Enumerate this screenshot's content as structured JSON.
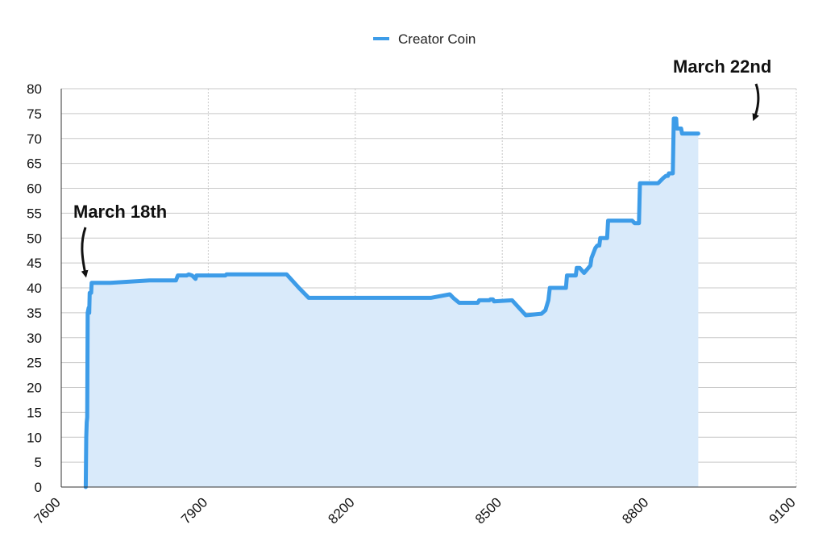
{
  "chart_data": {
    "type": "area",
    "title": "",
    "xlabel": "",
    "ylabel": "",
    "xlim": [
      7600,
      9100
    ],
    "ylim": [
      0,
      80
    ],
    "x_ticks": [
      "7600",
      "7900",
      "8200",
      "8500",
      "8800",
      "9100"
    ],
    "y_ticks": [
      "0",
      "5",
      "10",
      "15",
      "20",
      "25",
      "30",
      "35",
      "40",
      "45",
      "50",
      "55",
      "60",
      "65",
      "70",
      "75",
      "80"
    ],
    "grid": true,
    "legend_position": "top-center",
    "colors": {
      "line": "#3d9ce8",
      "fill": "#d9eafa",
      "grid": "#c8c8c8",
      "axis": "#333333"
    },
    "series": [
      {
        "name": "Creator Coin",
        "points": [
          [
            7650,
            0
          ],
          [
            7651,
            10
          ],
          [
            7652,
            13
          ],
          [
            7653,
            14
          ],
          [
            7654,
            35
          ],
          [
            7656,
            36
          ],
          [
            7657,
            35
          ],
          [
            7658,
            39
          ],
          [
            7661,
            39
          ],
          [
            7662,
            41
          ],
          [
            7700,
            41
          ],
          [
            7780,
            41.5
          ],
          [
            7834,
            41.5
          ],
          [
            7838,
            42.5
          ],
          [
            7840,
            42.5
          ],
          [
            7856,
            42.5
          ],
          [
            7860,
            42.7
          ],
          [
            7867,
            42.5
          ],
          [
            7874,
            41.8
          ],
          [
            7876,
            42.5
          ],
          [
            7935,
            42.5
          ],
          [
            7937,
            42.7
          ],
          [
            8060,
            42.7
          ],
          [
            8085,
            40
          ],
          [
            8105,
            38
          ],
          [
            8200,
            38
          ],
          [
            8300,
            38
          ],
          [
            8354,
            38
          ],
          [
            8393,
            38.7
          ],
          [
            8400,
            38
          ],
          [
            8412,
            37
          ],
          [
            8450,
            37
          ],
          [
            8453,
            37.5
          ],
          [
            8474,
            37.5
          ],
          [
            8476,
            37.7
          ],
          [
            8481,
            37.7
          ],
          [
            8483,
            37.3
          ],
          [
            8520,
            37.5
          ],
          [
            8548,
            34.5
          ],
          [
            8580,
            34.8
          ],
          [
            8588,
            35.5
          ],
          [
            8594,
            37.5
          ],
          [
            8597,
            40
          ],
          [
            8630,
            40
          ],
          [
            8632,
            42.5
          ],
          [
            8650,
            42.5
          ],
          [
            8652,
            44
          ],
          [
            8658,
            44
          ],
          [
            8667,
            43
          ],
          [
            8680,
            44.5
          ],
          [
            8682,
            46
          ],
          [
            8690,
            48
          ],
          [
            8694,
            48.5
          ],
          [
            8698,
            48.5
          ],
          [
            8700,
            50
          ],
          [
            8714,
            50
          ],
          [
            8716,
            53.5
          ],
          [
            8765,
            53.5
          ],
          [
            8770,
            53
          ],
          [
            8779,
            53
          ],
          [
            8781,
            61
          ],
          [
            8818,
            61
          ],
          [
            8828,
            62
          ],
          [
            8834,
            62.5
          ],
          [
            8838,
            62.5
          ],
          [
            8840,
            63
          ],
          [
            8848,
            63
          ],
          [
            8850,
            74
          ],
          [
            8855,
            74
          ],
          [
            8856,
            72
          ],
          [
            8865,
            72
          ],
          [
            8867,
            71
          ],
          [
            8900,
            71
          ]
        ]
      }
    ],
    "annotations": [
      {
        "text": "March 18th",
        "target": [
          7660,
          41
        ]
      },
      {
        "text": "March 22nd",
        "target": [
          8900,
          71
        ]
      }
    ]
  }
}
